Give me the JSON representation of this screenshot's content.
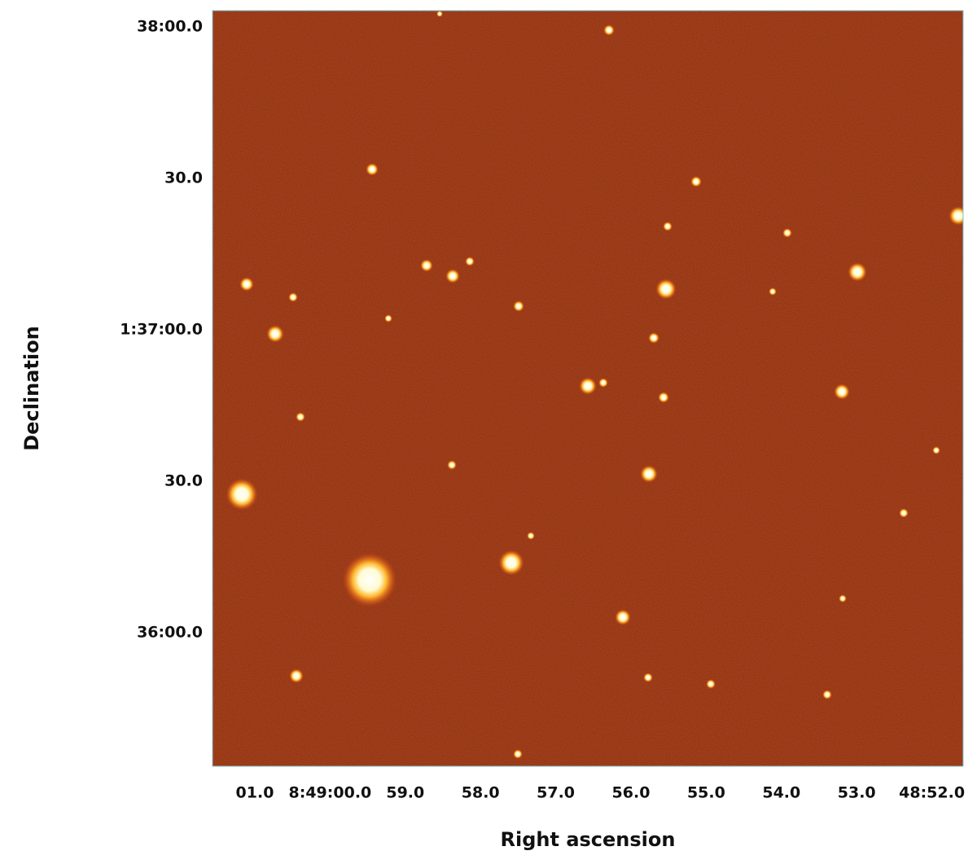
{
  "x_axis": {
    "label": "Right ascension",
    "ticks": [
      "01.0",
      "8:49:00.0",
      "59.0",
      "58.0",
      "57.0",
      "56.0",
      "55.0",
      "54.0",
      "53.0",
      "48:52.0"
    ]
  },
  "y_axis": {
    "label": "Declination",
    "ticks": [
      "38:00.0",
      "30.0",
      "1:37:00.0",
      "30.0",
      "36:00.0"
    ]
  }
}
